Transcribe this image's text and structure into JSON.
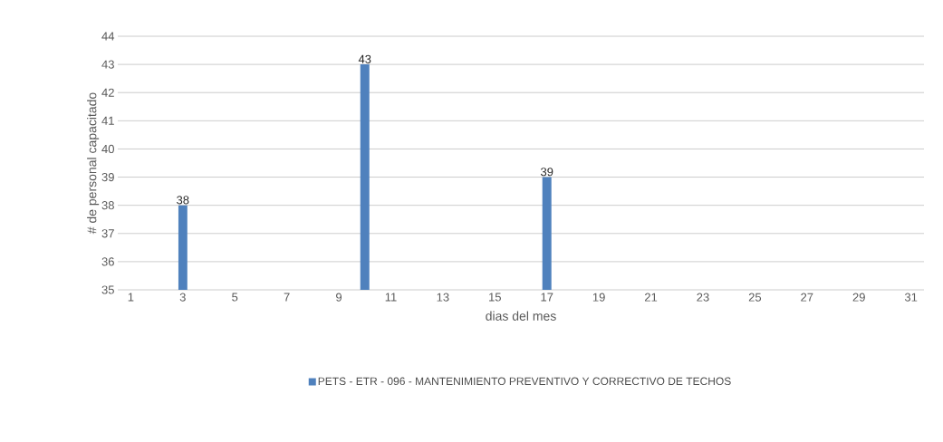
{
  "chart_data": {
    "type": "bar",
    "xlabel": "dias del mes",
    "ylabel": "# de personal capacitado",
    "categories": [
      "1",
      null,
      "3",
      null,
      "5",
      null,
      "7",
      null,
      "9",
      null,
      "11",
      null,
      "13",
      null,
      "15",
      null,
      "17",
      null,
      "19",
      null,
      "21",
      null,
      "23",
      null,
      "25",
      null,
      "27",
      null,
      "29",
      null,
      "31"
    ],
    "series": [
      {
        "name": "PETS - ETR - 096 - MANTENIMIENTO PREVENTIVO Y CORRECTIVO DE TECHOS",
        "color": "#4f81bd",
        "values": [
          null,
          null,
          38,
          null,
          null,
          null,
          null,
          null,
          null,
          43,
          null,
          null,
          null,
          null,
          null,
          null,
          39,
          null,
          null,
          null,
          null,
          null,
          null,
          null,
          null,
          null,
          null,
          null,
          null,
          null,
          null
        ]
      }
    ],
    "ylim": [
      35,
      44
    ],
    "yticks": [
      35,
      36,
      37,
      38,
      39,
      40,
      41,
      42,
      43,
      44
    ],
    "grid": "y",
    "legend": "bottom",
    "data_labels": true
  }
}
